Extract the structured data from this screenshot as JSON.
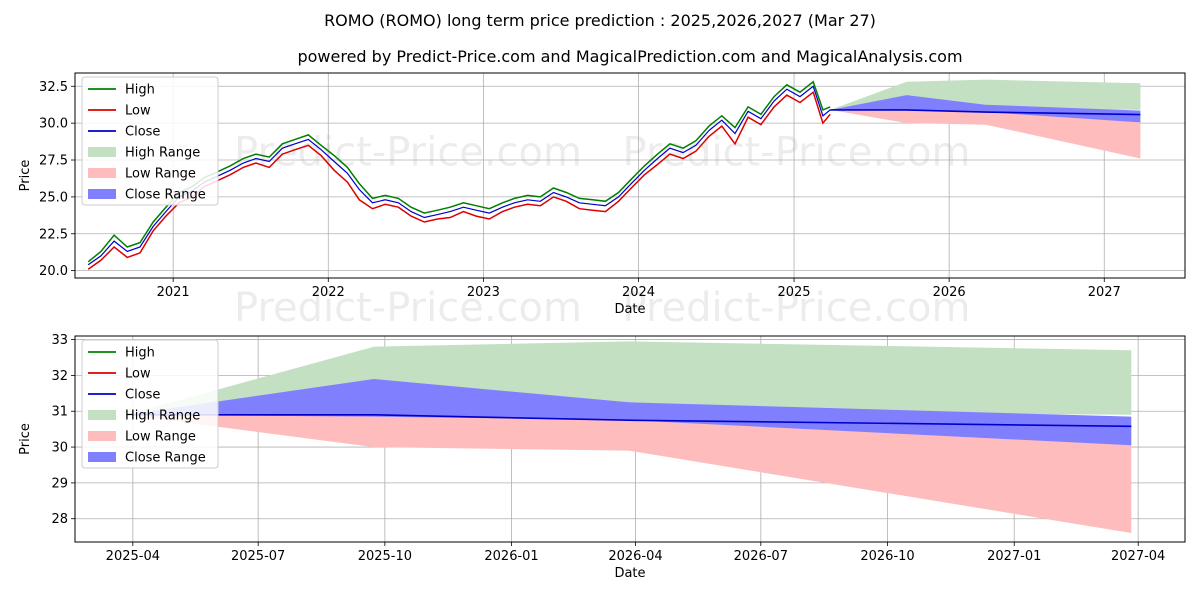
{
  "title": "ROMO (ROMO) long term price prediction : 2025,2026,2027 (Mar 27)",
  "subtitle": "powered by Predict-Price.com and MagicalPrediction.com and MagicalAnalysis.com",
  "watermark": "Predict-Price.com",
  "legend": {
    "high": "High",
    "low": "Low",
    "close": "Close",
    "high_range": "High Range",
    "low_range": "Low Range",
    "close_range": "Close Range"
  },
  "colors": {
    "high": "#008000",
    "low": "#dd0000",
    "close": "#0000cc",
    "high_range": "#c3e0c3",
    "low_range": "#ffbcbc",
    "close_range": "#8080ff"
  },
  "chart_data": [
    {
      "type": "line",
      "panel": "top",
      "xlabel": "Date",
      "ylabel": "Price",
      "x_ticks": [
        "2021",
        "2022",
        "2023",
        "2024",
        "2025",
        "2026",
        "2027"
      ],
      "y_ticks": [
        "20.0",
        "22.5",
        "25.0",
        "27.5",
        "30.0",
        "32.5"
      ],
      "ylim": [
        19.5,
        33.4
      ],
      "xlim": [
        "2020-05-15",
        "2027-07-10"
      ],
      "grid": true,
      "legend_position": "top-left",
      "history": {
        "dates": [
          "2020-06-15",
          "2020-07-15",
          "2020-08-15",
          "2020-09-15",
          "2020-10-15",
          "2020-11-15",
          "2020-12-15",
          "2021-01-15",
          "2021-02-15",
          "2021-03-15",
          "2021-04-15",
          "2021-05-15",
          "2021-06-15",
          "2021-07-15",
          "2021-08-15",
          "2021-09-15",
          "2021-10-15",
          "2021-11-15",
          "2021-12-15",
          "2022-01-15",
          "2022-02-15",
          "2022-03-15",
          "2022-04-15",
          "2022-05-15",
          "2022-06-15",
          "2022-07-15",
          "2022-08-15",
          "2022-09-15",
          "2022-10-15",
          "2022-11-15",
          "2022-12-15",
          "2023-01-15",
          "2023-02-15",
          "2023-03-15",
          "2023-04-15",
          "2023-05-15",
          "2023-06-15",
          "2023-07-15",
          "2023-08-15",
          "2023-09-15",
          "2023-10-15",
          "2023-11-15",
          "2023-12-15",
          "2024-01-15",
          "2024-02-15",
          "2024-03-15",
          "2024-04-15",
          "2024-05-15",
          "2024-06-15",
          "2024-07-15",
          "2024-08-15",
          "2024-09-15",
          "2024-10-15",
          "2024-11-15",
          "2024-12-15",
          "2025-01-15",
          "2025-02-15",
          "2025-03-10",
          "2025-03-27"
        ],
        "close": [
          20.4,
          21.0,
          22.0,
          21.3,
          21.6,
          23.0,
          24.0,
          25.0,
          25.4,
          26.0,
          26.4,
          26.8,
          27.3,
          27.6,
          27.4,
          28.3,
          28.6,
          28.9,
          28.2,
          27.4,
          26.6,
          25.5,
          24.6,
          24.8,
          24.6,
          24.0,
          23.6,
          23.8,
          24.0,
          24.3,
          24.1,
          23.9,
          24.3,
          24.6,
          24.8,
          24.7,
          25.3,
          25.0,
          24.6,
          24.5,
          24.4,
          25.0,
          25.9,
          26.8,
          27.6,
          28.3,
          28.0,
          28.5,
          29.5,
          30.2,
          29.3,
          30.8,
          30.3,
          31.5,
          32.3,
          31.8,
          32.5,
          30.5,
          30.9
        ],
        "high": [
          20.6,
          21.3,
          22.4,
          21.6,
          21.9,
          23.3,
          24.3,
          25.3,
          25.7,
          26.3,
          26.7,
          27.1,
          27.6,
          27.9,
          27.7,
          28.6,
          28.9,
          29.2,
          28.5,
          27.8,
          27.0,
          25.9,
          24.9,
          25.1,
          24.9,
          24.3,
          23.9,
          24.1,
          24.3,
          24.6,
          24.4,
          24.2,
          24.6,
          24.9,
          25.1,
          25.0,
          25.6,
          25.3,
          24.9,
          24.8,
          24.7,
          25.3,
          26.2,
          27.1,
          27.9,
          28.6,
          28.3,
          28.8,
          29.8,
          30.5,
          29.7,
          31.1,
          30.6,
          31.8,
          32.6,
          32.1,
          32.8,
          30.9,
          31.1
        ],
        "low": [
          20.1,
          20.7,
          21.6,
          20.9,
          21.2,
          22.7,
          23.7,
          24.6,
          25.0,
          25.7,
          26.1,
          26.5,
          27.0,
          27.3,
          27.0,
          27.9,
          28.2,
          28.5,
          27.8,
          26.8,
          26.0,
          24.8,
          24.2,
          24.5,
          24.3,
          23.7,
          23.3,
          23.5,
          23.6,
          24.0,
          23.7,
          23.5,
          24.0,
          24.3,
          24.5,
          24.4,
          25.0,
          24.7,
          24.2,
          24.1,
          24.0,
          24.7,
          25.6,
          26.5,
          27.2,
          27.9,
          27.6,
          28.1,
          29.1,
          29.8,
          28.6,
          30.4,
          29.9,
          31.1,
          31.9,
          31.4,
          32.1,
          30.0,
          30.6
        ]
      },
      "forecast": {
        "dates": [
          "2025-03-27",
          "2025-09-23",
          "2026-03-27",
          "2027-03-27"
        ],
        "high_range_upper": [
          30.9,
          32.8,
          32.95,
          32.7
        ],
        "high_range_lower": [
          30.9,
          30.95,
          31.0,
          30.9
        ],
        "low_range_upper": [
          30.9,
          30.9,
          30.8,
          30.6
        ],
        "low_range_lower": [
          30.9,
          30.0,
          29.9,
          27.6
        ],
        "close_range_upper": [
          30.9,
          31.9,
          31.25,
          30.85
        ],
        "close_range_lower": [
          30.9,
          30.85,
          30.75,
          30.05
        ],
        "close": [
          30.9,
          30.9,
          30.75,
          30.58
        ]
      }
    },
    {
      "type": "area",
      "panel": "bottom",
      "xlabel": "Date",
      "ylabel": "Price",
      "x_ticks": [
        "2025-04",
        "2025-07",
        "2025-10",
        "2026-01",
        "2026-04",
        "2026-07",
        "2026-10",
        "2027-01",
        "2027-04"
      ],
      "y_ticks": [
        "28",
        "29",
        "30",
        "31",
        "32",
        "33"
      ],
      "ylim": [
        27.35,
        33.1
      ],
      "xlim": [
        "2025-02-18",
        "2027-05-05"
      ],
      "grid": true,
      "legend_position": "top-left",
      "forecast": {
        "dates": [
          "2025-03-27",
          "2025-09-23",
          "2026-03-27",
          "2027-03-27"
        ],
        "high_range_upper": [
          30.9,
          32.8,
          32.95,
          32.7
        ],
        "high_range_lower": [
          30.9,
          30.95,
          31.0,
          30.9
        ],
        "low_range_upper": [
          30.9,
          30.9,
          30.8,
          30.6
        ],
        "low_range_lower": [
          30.9,
          30.0,
          29.9,
          27.6
        ],
        "close_range_upper": [
          30.9,
          31.9,
          31.25,
          30.85
        ],
        "close_range_lower": [
          30.9,
          30.85,
          30.75,
          30.05
        ],
        "close": [
          30.9,
          30.9,
          30.75,
          30.58
        ]
      }
    }
  ]
}
